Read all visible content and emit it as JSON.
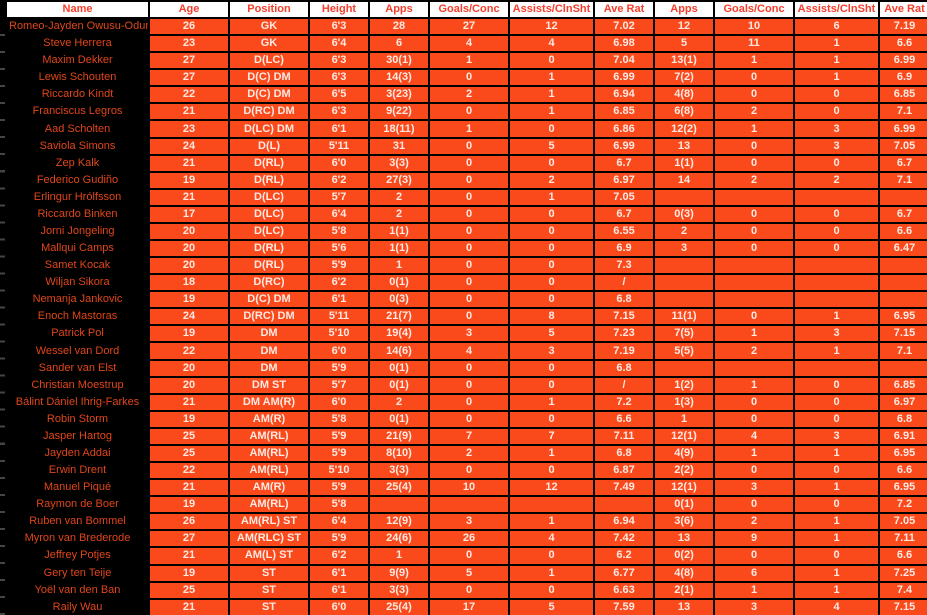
{
  "colors": {
    "cell_bg": "#FA4A1C",
    "cell_text": "#FFE9E2",
    "name_bg": "#000000",
    "name_text": "#E0461A",
    "header_bg": "#FFFFFF",
    "header_text": "#F83D2B",
    "grid": "#000000"
  },
  "table": {
    "columns": [
      "Name",
      "Age",
      "Position",
      "Height",
      "Apps",
      "Goals/Conc",
      "Assists/ClnSht",
      "Ave Rat",
      "Apps",
      "Goals/Conc",
      "Assists/ClnSht",
      "Ave Rat"
    ],
    "rows": [
      [
        "Romeo-Jayden Owusu-Oduro",
        "26",
        "GK",
        "6'3",
        "28",
        "27",
        "12",
        "7.02",
        "12",
        "10",
        "6",
        "7.19"
      ],
      [
        "Steve Herrera",
        "23",
        "GK",
        "6'4",
        "6",
        "4",
        "4",
        "6.98",
        "5",
        "11",
        "1",
        "6.6"
      ],
      [
        "Maxim Dekker",
        "27",
        "D(LC)",
        "6'3",
        "30(1)",
        "1",
        "0",
        "7.04",
        "13(1)",
        "1",
        "1",
        "6.99"
      ],
      [
        "Lewis Schouten",
        "27",
        "D(C) DM",
        "6'3",
        "14(3)",
        "0",
        "1",
        "6.99",
        "7(2)",
        "0",
        "1",
        "6.9"
      ],
      [
        "Riccardo Kindt",
        "22",
        "D(C) DM",
        "6'5",
        "3(23)",
        "2",
        "1",
        "6.94",
        "4(8)",
        "0",
        "0",
        "6.85"
      ],
      [
        "Franciscus Legros",
        "21",
        "D(RC) DM",
        "6'3",
        "9(22)",
        "0",
        "1",
        "6.85",
        "6(8)",
        "2",
        "0",
        "7.1"
      ],
      [
        "Aad Scholten",
        "23",
        "D(LC) DM",
        "6'1",
        "18(11)",
        "1",
        "0",
        "6.86",
        "12(2)",
        "1",
        "3",
        "6.99"
      ],
      [
        "Saviola Simons",
        "24",
        "D(L)",
        "5'11",
        "31",
        "0",
        "5",
        "6.99",
        "13",
        "0",
        "3",
        "7.05"
      ],
      [
        "Zep Kalk",
        "21",
        "D(RL)",
        "6'0",
        "3(3)",
        "0",
        "0",
        "6.7",
        "1(1)",
        "0",
        "0",
        "6.7"
      ],
      [
        "Federico Gudiño",
        "19",
        "D(RL)",
        "6'2",
        "27(3)",
        "0",
        "2",
        "6.97",
        "14",
        "2",
        "2",
        "7.1"
      ],
      [
        "Erlingur Hrólfsson",
        "21",
        "D(LC)",
        "5'7",
        "2",
        "0",
        "1",
        "7.05",
        "",
        "",
        "",
        ""
      ],
      [
        "Riccardo Binken",
        "17",
        "D(LC)",
        "6'4",
        "2",
        "0",
        "0",
        "6.7",
        "0(3)",
        "0",
        "0",
        "6.7"
      ],
      [
        "Jorni Jongeling",
        "20",
        "D(LC)",
        "5'8",
        "1(1)",
        "0",
        "0",
        "6.55",
        "2",
        "0",
        "0",
        "6.6"
      ],
      [
        "Mallqui Camps",
        "20",
        "D(RL)",
        "5'6",
        "1(1)",
        "0",
        "0",
        "6.9",
        "3",
        "0",
        "0",
        "6.47"
      ],
      [
        "Samet Kocak",
        "20",
        "D(RL)",
        "5'9",
        "1",
        "0",
        "0",
        "7.3",
        "",
        "",
        "",
        ""
      ],
      [
        "Wiljan Sikora",
        "18",
        "D(RC)",
        "6'2",
        "0(1)",
        "0",
        "0",
        "/",
        "",
        "",
        "",
        ""
      ],
      [
        "Nemanja Jankovic",
        "19",
        "D(C) DM",
        "6'1",
        "0(3)",
        "0",
        "0",
        "6.8",
        "",
        "",
        "",
        ""
      ],
      [
        "Enoch Mastoras",
        "24",
        "D(RC) DM",
        "5'11",
        "21(7)",
        "0",
        "8",
        "7.15",
        "11(1)",
        "0",
        "1",
        "6.95"
      ],
      [
        "Patrick Pol",
        "19",
        "DM",
        "5'10",
        "19(4)",
        "3",
        "5",
        "7.23",
        "7(5)",
        "1",
        "3",
        "7.15"
      ],
      [
        "Wessel van Dord",
        "22",
        "DM",
        "6'0",
        "14(6)",
        "4",
        "3",
        "7.19",
        "5(5)",
        "2",
        "1",
        "7.1"
      ],
      [
        "Sander van Elst",
        "20",
        "DM",
        "5'9",
        "0(1)",
        "0",
        "0",
        "6.8",
        "",
        "",
        "",
        ""
      ],
      [
        "Christian Moestrup",
        "20",
        "DM ST",
        "5'7",
        "0(1)",
        "0",
        "0",
        "/",
        "1(2)",
        "1",
        "0",
        "6.85"
      ],
      [
        "Bálint Dániel Ihrig-Farkes",
        "21",
        "DM AM(R)",
        "6'0",
        "2",
        "0",
        "1",
        "7.2",
        "1(3)",
        "0",
        "0",
        "6.97"
      ],
      [
        "Robin Storm",
        "19",
        "AM(R)",
        "5'8",
        "0(1)",
        "0",
        "0",
        "6.6",
        "1",
        "0",
        "0",
        "6.8"
      ],
      [
        "Jasper Hartog",
        "25",
        "AM(RL)",
        "5'9",
        "21(9)",
        "7",
        "7",
        "7.11",
        "12(1)",
        "4",
        "3",
        "6.91"
      ],
      [
        "Jayden Addai",
        "25",
        "AM(RL)",
        "5'9",
        "8(10)",
        "2",
        "1",
        "6.8",
        "4(9)",
        "1",
        "1",
        "6.95"
      ],
      [
        "Erwin Drent",
        "22",
        "AM(RL)",
        "5'10",
        "3(3)",
        "0",
        "0",
        "6.87",
        "2(2)",
        "0",
        "0",
        "6.6"
      ],
      [
        "Manuel Piqué",
        "21",
        "AM(R)",
        "5'9",
        "25(4)",
        "10",
        "12",
        "7.49",
        "12(1)",
        "3",
        "1",
        "6.95"
      ],
      [
        "Raymon de Boer",
        "19",
        "AM(RL)",
        "5'8",
        "",
        "",
        "",
        "",
        "0(1)",
        "0",
        "0",
        "7.2"
      ],
      [
        "Ruben van Bommel",
        "26",
        "AM(RL) ST",
        "6'4",
        "12(9)",
        "3",
        "1",
        "6.94",
        "3(6)",
        "2",
        "1",
        "7.05"
      ],
      [
        "Myron van Brederode",
        "27",
        "AM(RLC) ST",
        "5'9",
        "24(6)",
        "26",
        "4",
        "7.42",
        "13",
        "9",
        "1",
        "7.11"
      ],
      [
        "Jeffrey Potjes",
        "21",
        "AM(L) ST",
        "6'2",
        "1",
        "0",
        "0",
        "6.2",
        "0(2)",
        "0",
        "0",
        "6.6"
      ],
      [
        "Gery ten Teije",
        "19",
        "ST",
        "6'1",
        "9(9)",
        "5",
        "1",
        "6.77",
        "4(8)",
        "6",
        "1",
        "7.25"
      ],
      [
        "Yoël van den Ban",
        "25",
        "ST",
        "6'1",
        "3(3)",
        "0",
        "0",
        "6.63",
        "2(1)",
        "1",
        "1",
        "7.4"
      ],
      [
        "Raily Wau",
        "21",
        "ST",
        "6'0",
        "25(4)",
        "17",
        "5",
        "7.59",
        "13",
        "3",
        "4",
        "7.15"
      ]
    ]
  }
}
